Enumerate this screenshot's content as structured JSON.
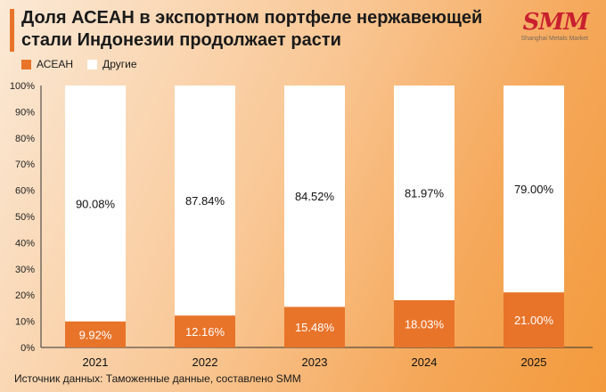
{
  "header": {
    "title_line1": "Доля АСЕАН в экспортном портфеле нержавеющей",
    "title_line2": "стали Индонезии продолжает расти"
  },
  "logo": {
    "mark": "SMM",
    "subtitle": "Shanghai Metals Market"
  },
  "legend": {
    "asean": "АСЕАН",
    "other": "Другие"
  },
  "footer": {
    "source": "Источник данных: Таможенные данные, составлено SMM"
  },
  "colors": {
    "asean": "#e8742a",
    "other": "#ffffff"
  },
  "chart_data": {
    "type": "bar",
    "stacked": true,
    "title": "Доля АСЕАН в экспортном портфеле нержавеющей стали Индонезии продолжает расти",
    "categories": [
      "2021",
      "2022",
      "2023",
      "2024",
      "2025"
    ],
    "series": [
      {
        "name": "АСЕАН",
        "values": [
          9.92,
          12.16,
          15.48,
          18.03,
          21.0
        ],
        "labels": [
          "9.92%",
          "12.16%",
          "15.48%",
          "18.03%",
          "21.00%"
        ]
      },
      {
        "name": "Другие",
        "values": [
          90.08,
          87.84,
          84.52,
          81.97,
          79.0
        ],
        "labels": [
          "90.08%",
          "87.84%",
          "84.52%",
          "81.97%",
          "79.00%"
        ]
      }
    ],
    "ylim": [
      0,
      100
    ],
    "yticks": [
      "0%",
      "10%",
      "20%",
      "30%",
      "40%",
      "50%",
      "60%",
      "70%",
      "80%",
      "90%",
      "100%"
    ],
    "xlabel": "",
    "ylabel": ""
  }
}
